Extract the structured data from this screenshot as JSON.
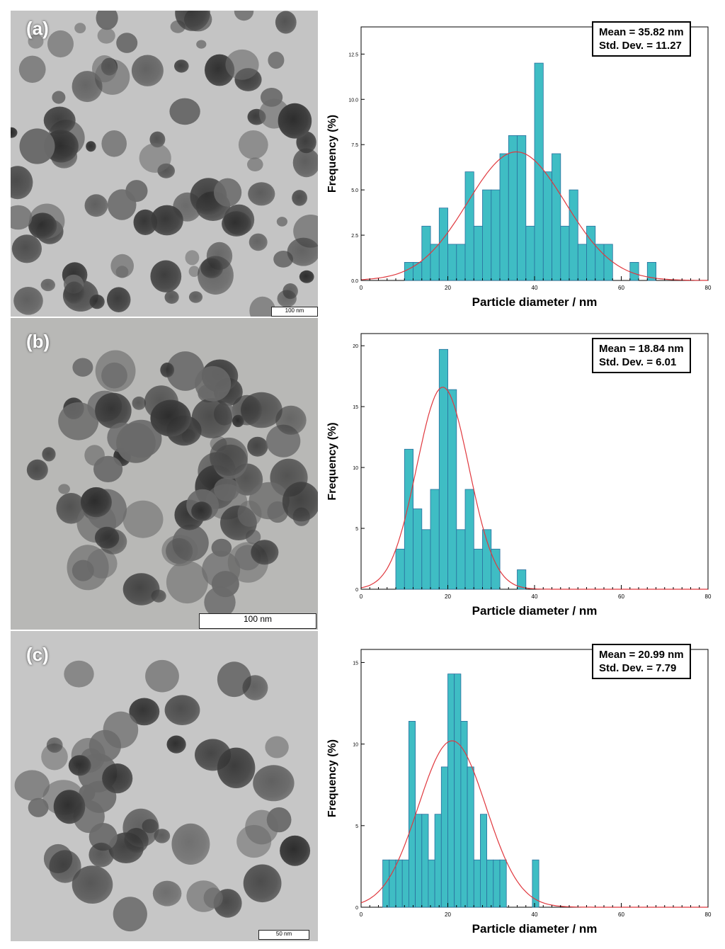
{
  "panels": [
    {
      "id": "a",
      "label": "(a)",
      "scale_bar": "100 nm",
      "stats": {
        "mean": "Mean = 35.82 nm",
        "std": "Std. Dev. = 11.27"
      }
    },
    {
      "id": "b",
      "label": "(b)",
      "scale_bar": "100 nm",
      "stats": {
        "mean": "Mean = 18.84 nm",
        "std": "Std. Dev. = 6.01"
      }
    },
    {
      "id": "c",
      "label": "(c)",
      "scale_bar": "50 nm",
      "stats": {
        "mean": "Mean = 20.99 nm",
        "std": "Std. Dev. = 7.79"
      }
    }
  ],
  "chart_data": [
    {
      "type": "bar",
      "panel": "(a)",
      "xlabel": "Particle diameter / nm",
      "ylabel": "Frequency (%)",
      "xlim": [
        0,
        80
      ],
      "ylim": [
        0,
        14
      ],
      "xticks": [
        0,
        20,
        40,
        60,
        80
      ],
      "yticks": [
        "0.0",
        "2.5",
        "5.0",
        "7.5",
        "10.0",
        "12.5"
      ],
      "bin_width": 2,
      "bins_start": [
        10,
        12,
        14,
        16,
        18,
        20,
        22,
        24,
        26,
        28,
        30,
        32,
        34,
        36,
        38,
        40,
        42,
        44,
        46,
        48,
        50,
        52,
        54,
        56,
        58,
        60,
        62,
        64,
        66
      ],
      "values": [
        1,
        1,
        3,
        2,
        4,
        2,
        2,
        6,
        3,
        5,
        5,
        7,
        8,
        8,
        3,
        12,
        6,
        7,
        3,
        5,
        2,
        3,
        2,
        2,
        0,
        0,
        1,
        0,
        1
      ],
      "fit": {
        "type": "normal",
        "mean": 35.82,
        "std": 11.27,
        "peak": 7.1
      },
      "bar_color": "#3fbdc4",
      "fit_color": "#e0383e",
      "legend_position": "top-right"
    },
    {
      "type": "bar",
      "panel": "(b)",
      "xlabel": "Particle diameter / nm",
      "ylabel": "Frequency (%)",
      "xlim": [
        0,
        80
      ],
      "ylim": [
        0,
        21
      ],
      "xticks": [
        0,
        20,
        40,
        60,
        80
      ],
      "yticks": [
        "0",
        "5",
        "10",
        "15",
        "20"
      ],
      "bin_width": 2,
      "bins_start": [
        8,
        10,
        12,
        14,
        16,
        18,
        20,
        22,
        24,
        26,
        28,
        30,
        32,
        34,
        36
      ],
      "values": [
        3.3,
        11.5,
        6.6,
        4.9,
        8.2,
        19.7,
        16.4,
        4.9,
        8.2,
        3.3,
        4.9,
        3.3,
        0,
        0,
        1.6
      ],
      "fit": {
        "type": "normal",
        "mean": 18.84,
        "std": 6.01,
        "peak": 16.6
      },
      "bar_color": "#3fbdc4",
      "fit_color": "#e0383e",
      "legend_position": "top-right"
    },
    {
      "type": "bar",
      "panel": "(c)",
      "xlabel": "Particle diameter / nm",
      "ylabel": "Frequency (%)",
      "xlim": [
        0,
        80
      ],
      "ylim": [
        0,
        15.8
      ],
      "xticks": [
        0,
        20,
        40,
        60,
        80
      ],
      "yticks": [
        "0",
        "5",
        "10",
        "15"
      ],
      "bin_width": 1.5,
      "bins_start": [
        5,
        6.5,
        8,
        9.5,
        11,
        12.5,
        14,
        15.5,
        17,
        18.5,
        20,
        21.5,
        23,
        24.5,
        26,
        27.5,
        29,
        30.5,
        32,
        33.5,
        35,
        36.5,
        38,
        39.5
      ],
      "values": [
        2.9,
        2.9,
        2.9,
        2.9,
        11.4,
        5.7,
        5.7,
        2.9,
        5.7,
        8.6,
        14.3,
        14.3,
        11.4,
        8.6,
        2.9,
        5.7,
        2.9,
        2.9,
        2.9,
        0,
        0,
        0,
        0,
        2.9
      ],
      "fit": {
        "type": "normal",
        "mean": 20.99,
        "std": 7.79,
        "peak": 10.2
      },
      "bar_color": "#3fbdc4",
      "fit_color": "#e0383e",
      "legend_position": "top-right"
    }
  ]
}
